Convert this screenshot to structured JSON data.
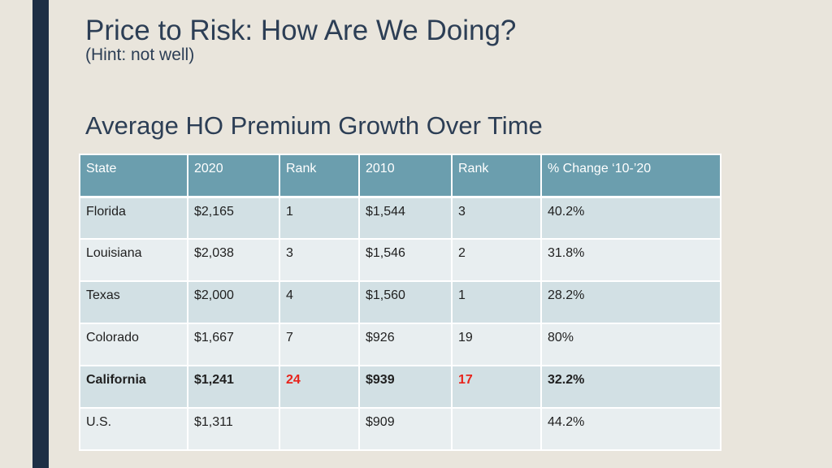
{
  "slide": {
    "title": "Price to Risk: How Are We Doing?",
    "subtitle": "(Hint: not well)",
    "section_heading": "Average HO Premium Growth Over Time"
  },
  "table": {
    "headers": [
      "State",
      "2020",
      "Rank",
      "2010",
      "Rank",
      "% Change ‘10-’20"
    ],
    "rows": [
      {
        "state": "Florida",
        "p2020": "$2,165",
        "rank2020": "1",
        "p2010": "$1,544",
        "rank2010": "3",
        "change": "40.2%"
      },
      {
        "state": "Louisiana",
        "p2020": "$2,038",
        "rank2020": "3",
        "p2010": "$1,546",
        "rank2010": "2",
        "change": "31.8%"
      },
      {
        "state": "Texas",
        "p2020": "$2,000",
        "rank2020": "4",
        "p2010": "$1,560",
        "rank2010": "1",
        "change": "28.2%"
      },
      {
        "state": "Colorado",
        "p2020": "$1,667",
        "rank2020": "7",
        "p2010": "$926",
        "rank2010": "19",
        "change": "80%"
      },
      {
        "state": "California",
        "p2020": "$1,241",
        "rank2020": "24",
        "p2010": "$939",
        "rank2010": "17",
        "change": "32.2%"
      },
      {
        "state": "U.S.",
        "p2020": "$1,311",
        "rank2020": "",
        "p2010": "$909",
        "rank2010": "",
        "change": "44.2%"
      }
    ]
  },
  "colors": {
    "background": "#e9e5dc",
    "side_bar": "#1e2f45",
    "header_fill": "#6b9eae",
    "row_odd": "#d2e0e4",
    "row_even": "#e8eef0",
    "highlight_red": "#e8231b"
  }
}
